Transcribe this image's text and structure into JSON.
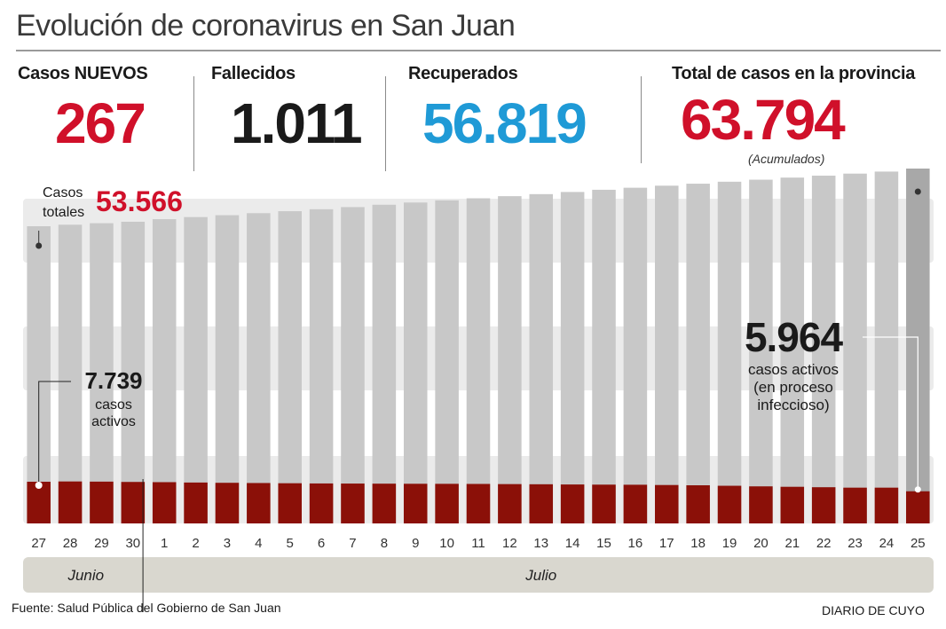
{
  "title": "Evolución de coronavirus en San Juan",
  "stats": {
    "new_cases": {
      "label": "Casos NUEVOS",
      "value": "267",
      "color": "#d0102a"
    },
    "deaths": {
      "label": "Fallecidos",
      "value": "1.011",
      "color": "#1a1a1a"
    },
    "recovered": {
      "label": "Recuperados",
      "value": "56.819",
      "color": "#1f9ad6"
    },
    "total": {
      "label": "Total de casos en la provincia",
      "value": "63.794",
      "note": "(Acumulados)",
      "color": "#d0102a"
    }
  },
  "chart_data": {
    "type": "bar",
    "categories": [
      "27",
      "28",
      "29",
      "30",
      "1",
      "2",
      "3",
      "4",
      "5",
      "6",
      "7",
      "8",
      "9",
      "10",
      "11",
      "12",
      "13",
      "14",
      "15",
      "16",
      "17",
      "18",
      "19",
      "20",
      "21",
      "22",
      "23",
      "24",
      "25"
    ],
    "series": [
      {
        "name": "Casos totales",
        "values": [
          53566,
          53830,
          54100,
          54360,
          54820,
          55190,
          55520,
          55880,
          56230,
          56580,
          56960,
          57380,
          57770,
          58160,
          58520,
          58900,
          59260,
          59640,
          60030,
          60390,
          60760,
          61110,
          61460,
          61820,
          62190,
          62540,
          62900,
          63260,
          63794
        ],
        "color": "#c8c8c8",
        "highlight_color": "#a8a8a8"
      },
      {
        "name": "casos activos",
        "values": [
          7739,
          7790,
          7760,
          7700,
          7660,
          7590,
          7540,
          7500,
          7460,
          7420,
          7400,
          7380,
          7360,
          7350,
          7330,
          7300,
          7270,
          7230,
          7200,
          7180,
          7130,
          7080,
          6990,
          6880,
          6800,
          6720,
          6640,
          6640,
          5964
        ],
        "color": "#8b1008"
      }
    ],
    "period_labels": [
      "Junio",
      "Julio"
    ],
    "annotations": {
      "start_total_label": "Casos totales",
      "start_total_value": "53.566",
      "start_active_value": "7.739",
      "start_active_label": "casos activos",
      "end_active_value": "5.964",
      "end_active_label": "casos activos (en proceso infeccioso)"
    },
    "colors": {
      "band": "#ebebeb",
      "axis_band": "#d9d7cf",
      "red": "#d0102a",
      "dark": "#1a1a1a"
    }
  },
  "footer": {
    "source": "Fuente: Salud Pública del Gobierno de San Juan",
    "brand": "DIARIO DE CUYO"
  }
}
